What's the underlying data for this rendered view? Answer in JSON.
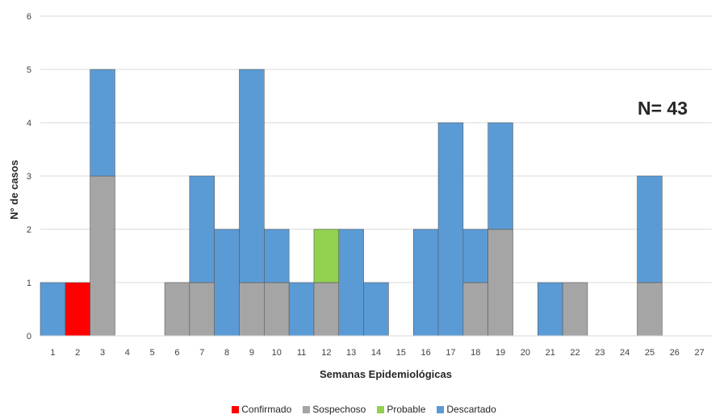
{
  "chart_data": {
    "type": "bar",
    "stacked": true,
    "categories": [
      "1",
      "2",
      "3",
      "4",
      "5",
      "6",
      "7",
      "8",
      "9",
      "10",
      "11",
      "12",
      "13",
      "14",
      "15",
      "16",
      "17",
      "18",
      "19",
      "20",
      "21",
      "22",
      "23",
      "24",
      "25",
      "26",
      "27"
    ],
    "series": [
      {
        "name": "Confirmado",
        "color": "#ff0000",
        "values": [
          0,
          1,
          0,
          0,
          0,
          0,
          0,
          0,
          0,
          0,
          0,
          0,
          0,
          0,
          0,
          0,
          0,
          0,
          0,
          0,
          0,
          0,
          0,
          0,
          0,
          0,
          0
        ]
      },
      {
        "name": "Sospechoso",
        "color": "#a5a5a5",
        "values": [
          0,
          0,
          3,
          0,
          0,
          1,
          1,
          0,
          1,
          1,
          0,
          1,
          0,
          0,
          0,
          0,
          0,
          1,
          2,
          0,
          0,
          1,
          0,
          0,
          1,
          0,
          0
        ]
      },
      {
        "name": "Probable",
        "color": "#92d050",
        "values": [
          0,
          0,
          0,
          0,
          0,
          0,
          0,
          0,
          0,
          0,
          0,
          1,
          0,
          0,
          0,
          0,
          0,
          0,
          0,
          0,
          0,
          0,
          0,
          0,
          0,
          0,
          0
        ]
      },
      {
        "name": "Descartado",
        "color": "#5b9bd5",
        "values": [
          1,
          0,
          2,
          0,
          0,
          0,
          2,
          2,
          4,
          1,
          1,
          0,
          2,
          1,
          0,
          2,
          4,
          1,
          2,
          0,
          1,
          0,
          0,
          0,
          2,
          0,
          0
        ]
      }
    ],
    "xlabel": "Semanas Epidemiológicas",
    "ylabel": "N° de casos",
    "ylim": [
      0,
      6
    ],
    "yticks": [
      0,
      1,
      2,
      3,
      4,
      5,
      6
    ],
    "annotation": "N= 43",
    "annotation_placement": "upper-right",
    "grid": true,
    "legend_position": "bottom"
  }
}
